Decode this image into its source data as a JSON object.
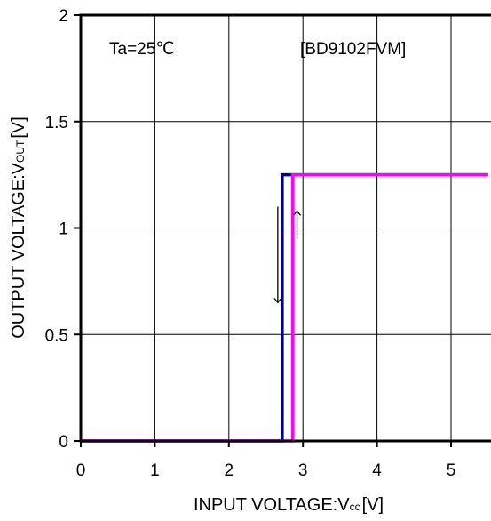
{
  "chart_data": {
    "type": "line",
    "xlabel": "INPUT VOLTAGE:Vcc [V]",
    "xlabel_main": "INPUT VOLTAGE:V",
    "xlabel_sub": "cc",
    "xlabel_unit": "[V]",
    "ylabel": "OUTPUT VOLTAGE:VOUT [V]",
    "ylabel_main": "OUTPUT VOLTAGE:V",
    "ylabel_sub": "OUT",
    "ylabel_unit": "[V]",
    "xlim": [
      0,
      5.5
    ],
    "ylim": [
      0,
      2
    ],
    "x_ticks": [
      0,
      1,
      2,
      3,
      4,
      5
    ],
    "x_tick_labels": [
      "0",
      "1",
      "2",
      "3",
      "4",
      "5"
    ],
    "y_ticks": [
      0,
      0.5,
      1,
      1.5,
      2
    ],
    "y_tick_labels": [
      "0",
      "0.5",
      "1",
      "1.5",
      "2"
    ],
    "grid": true,
    "annotations": [
      "Ta=25℃",
      "[BD9102FVM]"
    ],
    "series": [
      {
        "color": "#000080",
        "x": [
          0,
          2.72,
          2.72,
          5.5
        ],
        "y": [
          0,
          0,
          1.25,
          1.25
        ]
      },
      {
        "color": "#ff00ff",
        "x": [
          0,
          2.86,
          2.86,
          5.5
        ],
        "y": [
          0,
          0,
          1.25,
          1.25
        ]
      }
    ],
    "arrows": [
      {
        "direction": "up",
        "x": 2.86,
        "y_from": 0.95,
        "y_to": 1.08
      },
      {
        "direction": "down",
        "x": 2.72,
        "y_from": 1.1,
        "y_to": 0.65
      }
    ]
  }
}
